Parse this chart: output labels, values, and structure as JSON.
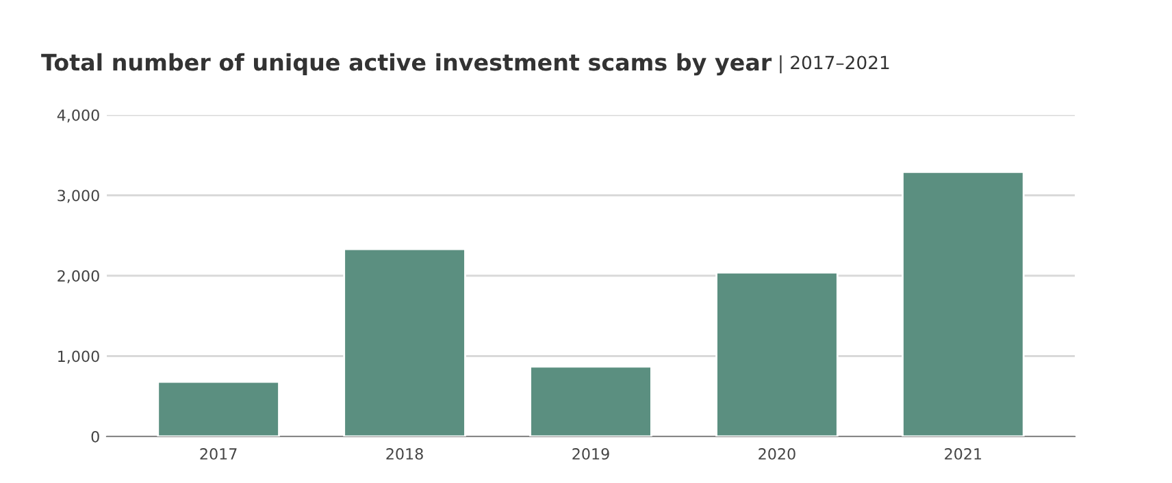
{
  "chart_data": {
    "type": "bar",
    "title": "Total number of unique active investment scams by year",
    "subtitle": "| 2017–2021",
    "categories": [
      "2017",
      "2018",
      "2019",
      "2020",
      "2021"
    ],
    "values": [
      680,
      2330,
      870,
      2040,
      3290
    ],
    "color": "#5b8f80",
    "ylim": [
      0,
      4000
    ],
    "yticks": [
      {
        "value": 0,
        "label": "0"
      },
      {
        "value": 1000,
        "label": "1,000"
      },
      {
        "value": 2000,
        "label": "2,000"
      },
      {
        "value": 3000,
        "label": "3,000"
      },
      {
        "value": 4000,
        "label": "4,000"
      }
    ],
    "grid": "y"
  }
}
